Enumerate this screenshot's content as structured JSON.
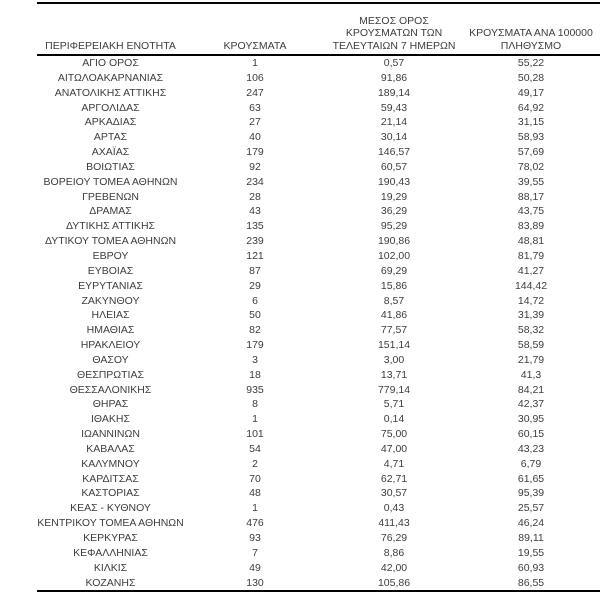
{
  "colors": {
    "text": "#3d3d3d",
    "border": "#000000",
    "background": "#ffffff"
  },
  "table": {
    "columns": [
      {
        "id": "region",
        "label": "ΠΕΡΙΦΕΡΕΙΑΚΗ ΕΝΟΤΗΤΑ",
        "lines": [
          "ΠΕΡΙΦΕΡΕΙΑΚΗ ΕΝΟΤΗΤΑ"
        ]
      },
      {
        "id": "cases",
        "label": "ΚΡΟΥΣΜΑΤΑ",
        "lines": [
          "ΚΡΟΥΣΜΑΤΑ"
        ]
      },
      {
        "id": "avg7",
        "label": "ΜΕΣΟΣ ΟΡΟΣ ΚΡΟΥΣΜΑΤΩΝ ΤΩΝ ΤΕΛΕΥΤΑΙΩΝ 7 ΗΜΕΡΩΝ",
        "lines": [
          "ΜΕΣΟΣ ΟΡΟΣ",
          "ΚΡΟΥΣΜΑΤΩΝ ΤΩΝ",
          "ΤΕΛΕΥΤΑΙΩΝ 7 ΗΜΕΡΩΝ"
        ]
      },
      {
        "id": "per100k",
        "label": "ΚΡΟΥΣΜΑΤΑ ΑΝΑ 100000 ΠΛΗΘΥΣΜΟ",
        "lines": [
          "ΚΡΟΥΣΜΑΤΑ ΑΝΑ 100000",
          "ΠΛΗΘΥΣΜΟ"
        ]
      }
    ],
    "rows": [
      [
        "ΑΓΙΟ ΟΡΟΣ",
        "1",
        "0,57",
        "55,22"
      ],
      [
        "ΑΙΤΩΛΟΑΚΑΡΝΑΝΙΑΣ",
        "106",
        "91,86",
        "50,28"
      ],
      [
        "ΑΝΑΤΟΛΙΚΗΣ ΑΤΤΙΚΗΣ",
        "247",
        "189,14",
        "49,17"
      ],
      [
        "ΑΡΓΟΛΙΔΑΣ",
        "63",
        "59,43",
        "64,92"
      ],
      [
        "ΑΡΚΑΔΙΑΣ",
        "27",
        "21,14",
        "31,15"
      ],
      [
        "ΑΡΤΑΣ",
        "40",
        "30,14",
        "58,93"
      ],
      [
        "ΑΧΑΪΑΣ",
        "179",
        "146,57",
        "57,69"
      ],
      [
        "ΒΟΙΩΤΙΑΣ",
        "92",
        "60,57",
        "78,02"
      ],
      [
        "ΒΟΡΕΙΟΥ ΤΟΜΕΑ ΑΘΗΝΩΝ",
        "234",
        "190,43",
        "39,55"
      ],
      [
        "ΓΡΕΒΕΝΩΝ",
        "28",
        "19,29",
        "88,17"
      ],
      [
        "ΔΡΑΜΑΣ",
        "43",
        "36,29",
        "43,75"
      ],
      [
        "ΔΥΤΙΚΗΣ ΑΤΤΙΚΗΣ",
        "135",
        "95,29",
        "83,89"
      ],
      [
        "ΔΥΤΙΚΟΥ ΤΟΜΕΑ ΑΘΗΝΩΝ",
        "239",
        "190,86",
        "48,81"
      ],
      [
        "ΕΒΡΟΥ",
        "121",
        "102,00",
        "81,79"
      ],
      [
        "ΕΥΒΟΙΑΣ",
        "87",
        "69,29",
        "41,27"
      ],
      [
        "ΕΥΡΥΤΑΝΙΑΣ",
        "29",
        "15,86",
        "144,42"
      ],
      [
        "ΖΑΚΥΝΘΟΥ",
        "6",
        "8,57",
        "14,72"
      ],
      [
        "ΗΛΕΙΑΣ",
        "50",
        "41,86",
        "31,39"
      ],
      [
        "ΗΜΑΘΙΑΣ",
        "82",
        "77,57",
        "58,32"
      ],
      [
        "ΗΡΑΚΛΕΙΟΥ",
        "179",
        "151,14",
        "58,59"
      ],
      [
        "ΘΑΣΟΥ",
        "3",
        "3,00",
        "21,79"
      ],
      [
        "ΘΕΣΠΡΩΤΙΑΣ",
        "18",
        "13,71",
        "41,3"
      ],
      [
        "ΘΕΣΣΑΛΟΝΙΚΗΣ",
        "935",
        "779,14",
        "84,21"
      ],
      [
        "ΘΗΡΑΣ",
        "8",
        "5,71",
        "42,37"
      ],
      [
        "ΙΘΑΚΗΣ",
        "1",
        "0,14",
        "30,95"
      ],
      [
        "ΙΩΑΝΝΙΝΩΝ",
        "101",
        "75,00",
        "60,15"
      ],
      [
        "ΚΑΒΑΛΑΣ",
        "54",
        "47,00",
        "43,23"
      ],
      [
        "ΚΑΛΥΜΝΟΥ",
        "2",
        "4,71",
        "6,79"
      ],
      [
        "ΚΑΡΔΙΤΣΑΣ",
        "70",
        "62,71",
        "61,65"
      ],
      [
        "ΚΑΣΤΟΡΙΑΣ",
        "48",
        "30,57",
        "95,39"
      ],
      [
        "ΚΕΑΣ - ΚΥΘΝΟΥ",
        "1",
        "0,43",
        "25,57"
      ],
      [
        "ΚΕΝΤΡΙΚΟΥ ΤΟΜΕΑ ΑΘΗΝΩΝ",
        "476",
        "411,43",
        "46,24"
      ],
      [
        "ΚΕΡΚΥΡΑΣ",
        "93",
        "76,29",
        "89,11"
      ],
      [
        "ΚΕΦΑΛΛΗΝΙΑΣ",
        "7",
        "8,86",
        "19,55"
      ],
      [
        "ΚΙΛΚΙΣ",
        "49",
        "42,00",
        "60,93"
      ],
      [
        "ΚΟΖΑΝΗΣ",
        "130",
        "105,86",
        "86,55"
      ]
    ]
  }
}
